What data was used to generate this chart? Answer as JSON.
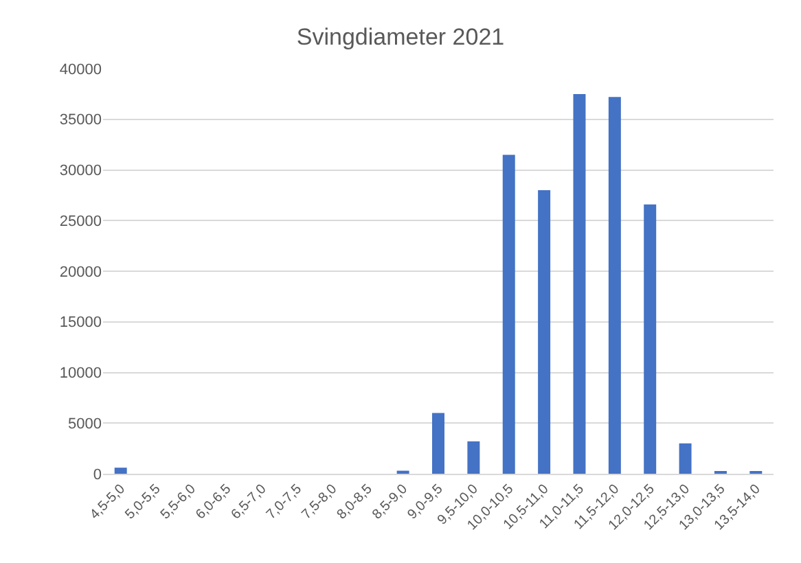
{
  "chart_data": {
    "type": "bar",
    "title": "Svingdiameter 2021",
    "categories": [
      "4,5-5,0",
      "5,0-5,5",
      "5,5-6,0",
      "6,0-6,5",
      "6,5-7,0",
      "7,0-7,5",
      "7,5-8,0",
      "8,0-8,5",
      "8,5-9,0",
      "9,0-9,5",
      "9,5-10,0",
      "10,0-10,5",
      "10,5-11,0",
      "11,0-11,5",
      "11,5-12,0",
      "12,0-12,5",
      "12,5-13,0",
      "13,0-13,5",
      "13,5-14,0"
    ],
    "values": [
      600,
      0,
      0,
      0,
      0,
      0,
      0,
      0,
      300,
      6000,
      3200,
      31500,
      28000,
      37500,
      37200,
      26600,
      3000,
      150,
      150
    ],
    "color": "#4472c4",
    "ylim": [
      0,
      40000
    ],
    "yticks": [
      0,
      5000,
      10000,
      15000,
      20000,
      25000,
      30000,
      35000,
      40000
    ],
    "grid": "y",
    "legend": false
  }
}
